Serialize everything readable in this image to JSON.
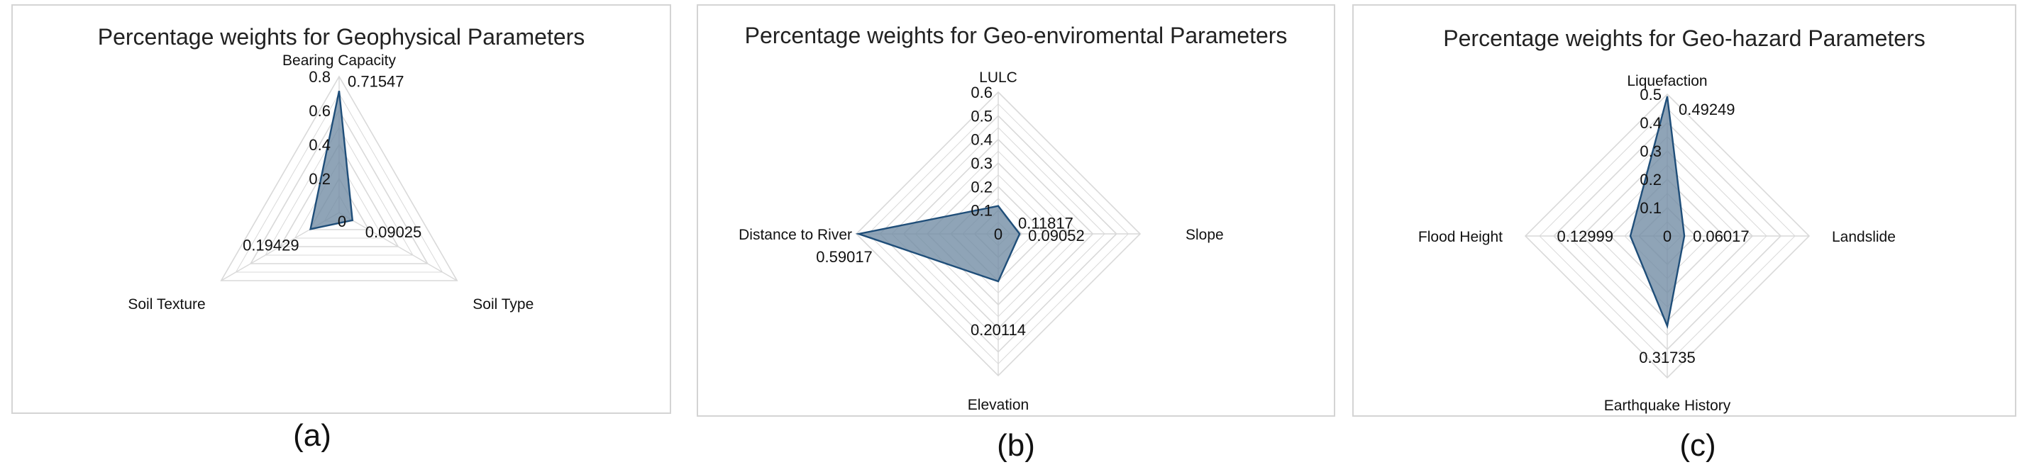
{
  "chart_data": [
    {
      "type": "radar",
      "title": "Percentage weights for Geophysical Parameters",
      "caption": "(a)",
      "axes": [
        "Bearing Capacity",
        "Soil Type",
        "Soil Texture"
      ],
      "values": [
        0.71547,
        0.09025,
        0.19429
      ],
      "value_labels": [
        "0.71547",
        "0.09025",
        "0.19429"
      ],
      "ticks": [
        "0",
        "0.2",
        "0.4",
        "0.6",
        "0.8"
      ],
      "rlim": [
        0,
        0.8
      ],
      "grid": true,
      "colors": {
        "fill": "#6f8aa3",
        "stroke": "#1f4e79",
        "grid": "#d9d9d9"
      }
    },
    {
      "type": "radar",
      "title": "Percentage weights for Geo-enviromental Parameters",
      "caption": "(b)",
      "axes": [
        "LULC",
        "Slope",
        "Elevation",
        "Distance to River"
      ],
      "values": [
        0.11817,
        0.09052,
        0.20114,
        0.59017
      ],
      "value_labels": [
        "0.11817",
        "0.09052",
        "0.20114",
        "0.59017"
      ],
      "ticks": [
        "0",
        "0.1",
        "0.2",
        "0.3",
        "0.4",
        "0.5",
        "0.6"
      ],
      "rlim": [
        0,
        0.6
      ],
      "grid": true,
      "colors": {
        "fill": "#6f8aa3",
        "stroke": "#1f4e79",
        "grid": "#d9d9d9"
      }
    },
    {
      "type": "radar",
      "title": "Percentage weights for Geo-hazard Parameters",
      "caption": "(c)",
      "axes": [
        "Liquefaction",
        "Landslide",
        "Earthquake History",
        "Flood Height"
      ],
      "values": [
        0.49249,
        0.06017,
        0.31735,
        0.12999
      ],
      "value_labels": [
        "0.49249",
        "0.06017",
        "0.31735",
        "0.12999"
      ],
      "ticks": [
        "0",
        "0.1",
        "0.2",
        "0.3",
        "0.4",
        "0.5"
      ],
      "rlim": [
        0,
        0.5
      ],
      "grid": true,
      "colors": {
        "fill": "#6f8aa3",
        "stroke": "#1f4e79",
        "grid": "#d9d9d9"
      }
    }
  ]
}
